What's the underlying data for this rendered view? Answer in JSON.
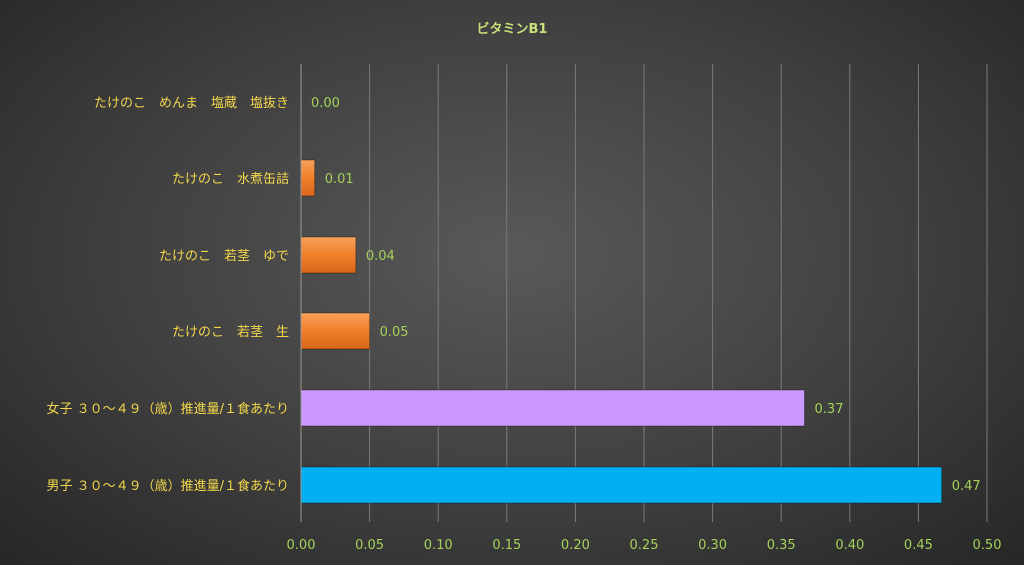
{
  "chart_data": {
    "type": "bar",
    "orientation": "horizontal",
    "title": "ビタミンB1",
    "categories": [
      "たけのこ　めんま　塩蔵　塩抜き",
      "たけのこ　水煮缶詰",
      "たけのこ　若茎　ゆで",
      "たけのこ　若茎　生",
      "女子 ３０～４９（歳）推進量/１食あたり",
      "男子 ３０～４９（歳）推進量/１食あたり"
    ],
    "values": [
      0.0,
      0.01,
      0.04,
      0.05,
      0.367,
      0.467
    ],
    "data_labels": [
      "0.00",
      "0.01",
      "0.04",
      "0.05",
      "0.37",
      "0.47"
    ],
    "bar_colors": [
      "#f07f2a",
      "#f07f2a",
      "#f07f2a",
      "#f07f2a",
      "#cc99ff",
      "#00b0f0"
    ],
    "xlim": [
      0,
      0.5
    ],
    "xticks": [
      "0.00",
      "0.05",
      "0.10",
      "0.15",
      "0.20",
      "0.25",
      "0.30",
      "0.35",
      "0.40",
      "0.45",
      "0.50"
    ],
    "grid": "vertical",
    "legend": "none"
  }
}
